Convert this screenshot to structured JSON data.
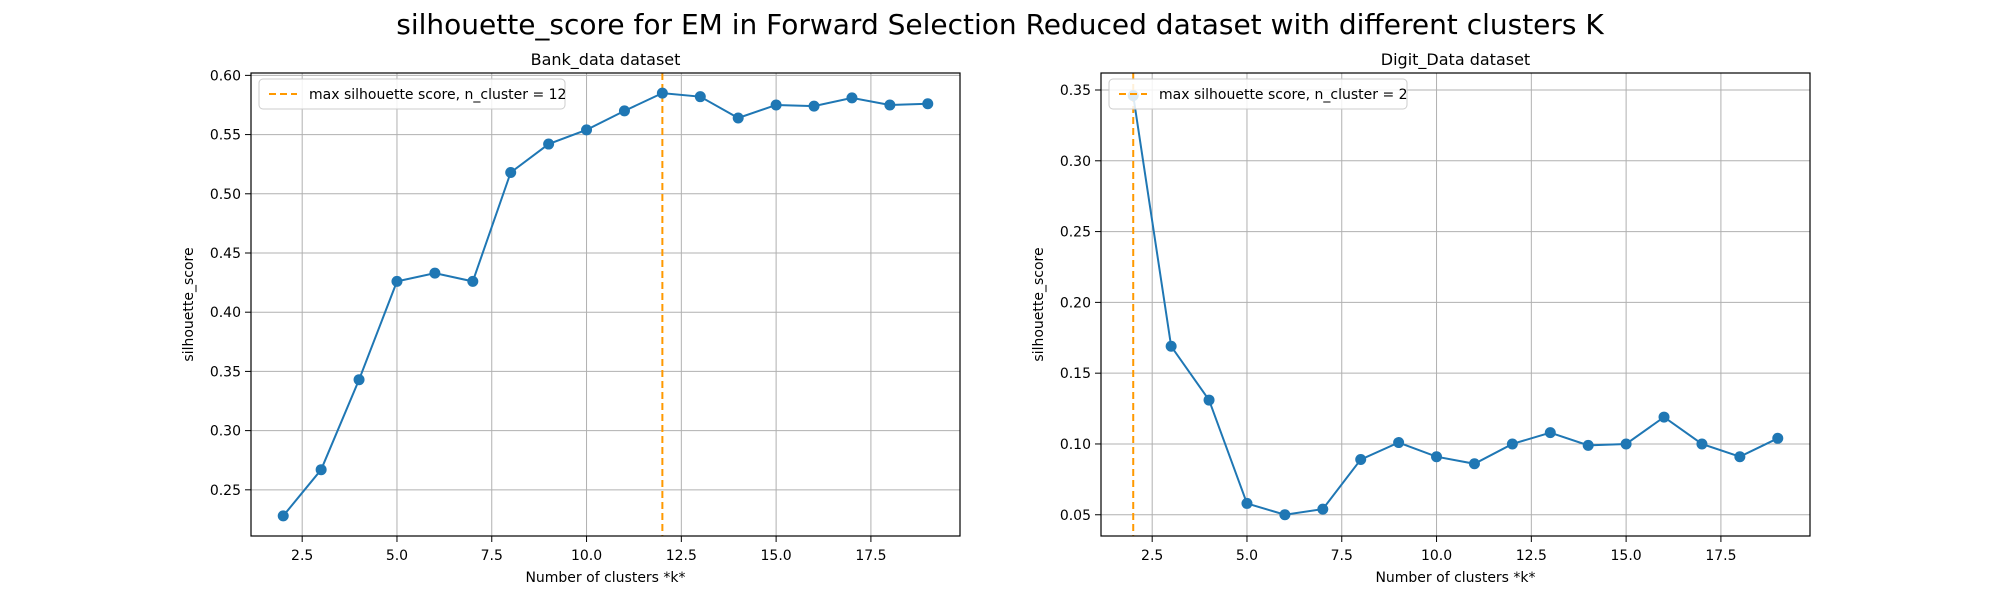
{
  "figure": {
    "suptitle": "silhouette_score for EM in Forward Selection Reduced dataset with different clusters K"
  },
  "colors": {
    "line": "#1f77b4",
    "vline": "#ff9900",
    "grid": "#b0b0b0"
  },
  "chart_data": [
    {
      "type": "line",
      "title": "Bank_data dataset",
      "xlabel": "Number of clusters *k*",
      "ylabel": "silhouette_score",
      "xlim": [
        1.15,
        19.85
      ],
      "ylim": [
        0.211,
        0.602
      ],
      "xticks": [
        2.5,
        5.0,
        7.5,
        10.0,
        12.5,
        15.0,
        17.5
      ],
      "yticks": [
        0.25,
        0.3,
        0.35,
        0.4,
        0.45,
        0.5,
        0.55,
        0.6
      ],
      "grid": true,
      "legend_location": "top-left",
      "x": [
        2,
        3,
        4,
        5,
        6,
        7,
        8,
        9,
        10,
        11,
        12,
        13,
        14,
        15,
        16,
        17,
        18,
        19
      ],
      "series": [
        {
          "values": [
            0.228,
            0.267,
            0.343,
            0.426,
            0.433,
            0.426,
            0.518,
            0.542,
            0.554,
            0.57,
            0.585,
            0.582,
            0.564,
            0.575,
            0.574,
            0.581,
            0.575,
            0.576
          ]
        }
      ],
      "vline": {
        "x": 12,
        "label": "max silhouette score, n_cluster = 12"
      }
    },
    {
      "type": "line",
      "title": "Digit_Data dataset",
      "xlabel": "Number of clusters *k*",
      "ylabel": "silhouette_score",
      "xlim": [
        1.15,
        19.85
      ],
      "ylim": [
        0.035,
        0.362
      ],
      "xticks": [
        2.5,
        5.0,
        7.5,
        10.0,
        12.5,
        15.0,
        17.5
      ],
      "yticks": [
        0.05,
        0.1,
        0.15,
        0.2,
        0.25,
        0.3,
        0.35
      ],
      "grid": true,
      "legend_location": "top-left",
      "x": [
        2,
        3,
        4,
        5,
        6,
        7,
        8,
        9,
        10,
        11,
        12,
        13,
        14,
        15,
        16,
        17,
        18,
        19
      ],
      "series": [
        {
          "values": [
            0.346,
            0.169,
            0.131,
            0.058,
            0.05,
            0.054,
            0.089,
            0.101,
            0.091,
            0.086,
            0.1,
            0.108,
            0.099,
            0.1,
            0.119,
            0.1,
            0.091,
            0.104
          ]
        }
      ],
      "vline": {
        "x": 2,
        "label": "max silhouette score, n_cluster = 2"
      }
    }
  ]
}
